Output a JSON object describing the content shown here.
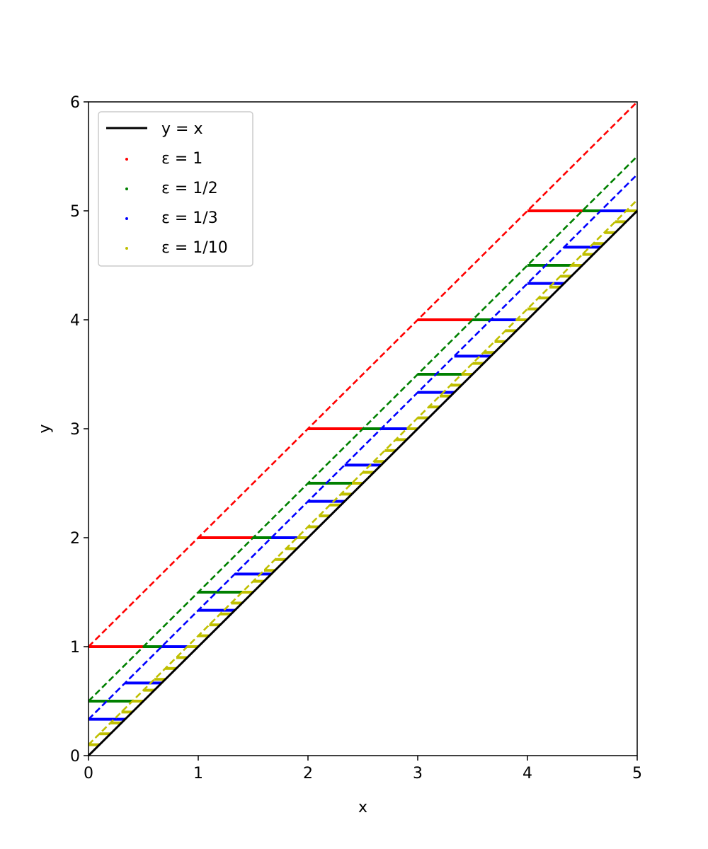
{
  "chart_data": {
    "type": "line",
    "xlabel": "x",
    "ylabel": "y",
    "xlim": [
      0,
      5
    ],
    "ylim": [
      0,
      6
    ],
    "x_ticks": [
      "0",
      "1",
      "2",
      "3",
      "4",
      "5"
    ],
    "y_ticks": [
      "0",
      "1",
      "2",
      "3",
      "4",
      "5",
      "6"
    ],
    "grid": false,
    "legend_position": "upper-left",
    "reference_line": {
      "name": "y = x",
      "color": "#000000",
      "x": [
        0,
        5
      ],
      "y": [
        0,
        5
      ]
    },
    "series": [
      {
        "name": "ε = 1",
        "epsilon": 1,
        "color": "#ff0000",
        "x_range": [
          0,
          5
        ]
      },
      {
        "name": "ε = 1/2",
        "epsilon": 0.5,
        "color": "#008000",
        "x_range": [
          0,
          5
        ]
      },
      {
        "name": "ε = 1/3",
        "epsilon": 0.333333,
        "color": "#0000ff",
        "x_range": [
          0,
          5
        ]
      },
      {
        "name": "ε = 1/10",
        "epsilon": 0.1,
        "color": "#bfbf00",
        "x_range": [
          0,
          5
        ]
      }
    ]
  }
}
